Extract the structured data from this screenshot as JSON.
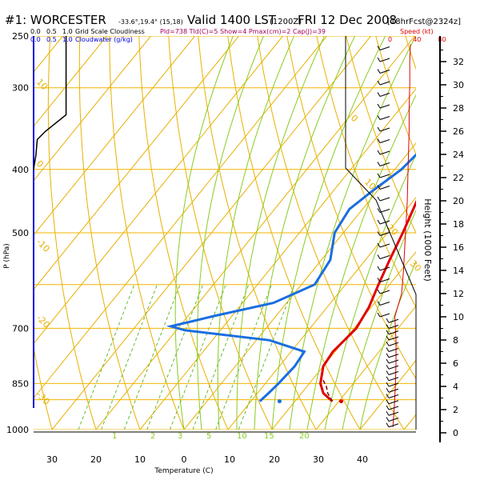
{
  "header": {
    "station": "#1: WORCESTER",
    "coords": "-33.6°,19.4° (15,18)",
    "valid": "Valid 1400 LST",
    "utc": "(1200Z)",
    "date": "FRI 12 Dec 2008",
    "forecast": "[18hrFcst@2324z]",
    "indices": "Pld=738 Tld(C)=5 Show=4 Pmax(cm)=2 Cap(J)=39"
  },
  "cloud_scale": {
    "black_label": "Grid Scale Cloudiness",
    "black_ticks": [
      "0.0",
      "0.5",
      "1.0"
    ],
    "blue_label": "Cloudwater (g/kg)",
    "blue_ticks": [
      "0.0",
      "0.5",
      "1.0"
    ]
  },
  "wind_scale": {
    "label": "Speed (kt)",
    "ticks": [
      "0",
      "40",
      "80"
    ]
  },
  "colors": {
    "isobar": "#f0b400",
    "dry_adiabat": "#e8b000",
    "moist_adiabat": "#88cc22",
    "mixing_ratio": "#66bb33",
    "temperature": "#e00000",
    "dewpoint": "#1a6ee0",
    "cloud_black": "#000000",
    "cloud_blue": "#0000dd",
    "wind_speed": "#e00000",
    "parcel": "#800000"
  },
  "chart_data": {
    "type": "skew-t",
    "xlabel": "Temperature (C)",
    "ylabel": "P (hPa)",
    "right_axis_label": "Height (1000 Feet)",
    "pressure_ticks": [
      250,
      300,
      400,
      500,
      700,
      850,
      1000
    ],
    "extra_isobars": [
      600,
      900
    ],
    "temperature_ticks": [
      30,
      20,
      10,
      0,
      0,
      10,
      20,
      30,
      40
    ],
    "temperature_tick_values": [
      -30,
      -20,
      -10,
      0,
      0,
      10,
      20,
      30,
      40
    ],
    "height_ticks_kft": [
      0,
      2,
      4,
      6,
      8,
      10,
      12,
      14,
      16,
      18,
      20,
      22,
      24,
      26,
      28,
      30,
      32
    ],
    "dry_adiabat_labels": [
      "10",
      "0",
      "-10",
      "-20",
      "-30",
      "0",
      "10",
      "20",
      "30"
    ],
    "moist_adiabat_labels": [
      "1",
      "2",
      "3",
      "5",
      "10",
      "15",
      "20"
    ],
    "temperature": [
      {
        "p": 260,
        "t": -2
      },
      {
        "p": 300,
        "t": 1.5
      },
      {
        "p": 350,
        "t": 5
      },
      {
        "p": 400,
        "t": 8
      },
      {
        "p": 450,
        "t": 11
      },
      {
        "p": 500,
        "t": 13.5
      },
      {
        "p": 550,
        "t": 15.5
      },
      {
        "p": 600,
        "t": 17.5
      },
      {
        "p": 650,
        "t": 19.5
      },
      {
        "p": 700,
        "t": 20.5
      },
      {
        "p": 730,
        "t": 20
      },
      {
        "p": 760,
        "t": 19.5
      },
      {
        "p": 800,
        "t": 20
      },
      {
        "p": 850,
        "t": 22.5
      },
      {
        "p": 880,
        "t": 25
      },
      {
        "p": 905,
        "t": 28.5
      }
    ],
    "dewpoint": [
      {
        "p": 260,
        "t": -6
      },
      {
        "p": 300,
        "t": -3
      },
      {
        "p": 340,
        "t": 1
      },
      {
        "p": 370,
        "t": 2.5
      },
      {
        "p": 400,
        "t": 1.5
      },
      {
        "p": 430,
        "t": -1
      },
      {
        "p": 460,
        "t": -3
      },
      {
        "p": 500,
        "t": -2
      },
      {
        "p": 550,
        "t": 2
      },
      {
        "p": 600,
        "t": 3
      },
      {
        "p": 640,
        "t": -3
      },
      {
        "p": 670,
        "t": -14
      },
      {
        "p": 695,
        "t": -22
      },
      {
        "p": 705,
        "t": -18
      },
      {
        "p": 730,
        "t": 3
      },
      {
        "p": 760,
        "t": 13
      },
      {
        "p": 800,
        "t": 13.5
      },
      {
        "p": 850,
        "t": 13
      },
      {
        "p": 880,
        "t": 12.5
      },
      {
        "p": 905,
        "t": 12
      }
    ],
    "surface_temperature": 30.5,
    "surface_dewpoint": 16.5,
    "surface_pressure": 905,
    "parcel": [
      {
        "p": 905,
        "t": 28.5
      },
      {
        "p": 880,
        "t": 26
      },
      {
        "p": 860,
        "t": 24.5
      },
      {
        "p": 840,
        "t": 22.5
      }
    ],
    "grid_scale_cloudiness": [
      {
        "p": 250,
        "v": 0.7
      },
      {
        "p": 330,
        "v": 0.7
      },
      {
        "p": 350,
        "v": 0.25
      },
      {
        "p": 360,
        "v": 0.08
      },
      {
        "p": 380,
        "v": 0.05
      },
      {
        "p": 400,
        "v": 0.0
      }
    ],
    "wind_speed_kt": [
      {
        "h": 0.5,
        "v": 4
      },
      {
        "h": 2,
        "v": 6
      },
      {
        "h": 4,
        "v": 8
      },
      {
        "h": 6,
        "v": 9
      },
      {
        "h": 8,
        "v": 9
      },
      {
        "h": 10,
        "v": 7
      },
      {
        "h": 12,
        "v": 18
      },
      {
        "h": 14,
        "v": 21
      },
      {
        "h": 16,
        "v": 23
      },
      {
        "h": 18,
        "v": 25
      },
      {
        "h": 20,
        "v": 27
      },
      {
        "h": 22,
        "v": 28
      },
      {
        "h": 24,
        "v": 29
      },
      {
        "h": 26,
        "v": 30
      },
      {
        "h": 28,
        "v": 30
      },
      {
        "h": 30,
        "v": 31
      },
      {
        "h": 32,
        "v": 31
      },
      {
        "h": 33.5,
        "v": 32
      }
    ],
    "wind_barbs_kft": [
      0.5,
      1,
      1.5,
      2,
      2.5,
      3,
      3.5,
      4,
      4.5,
      5,
      5.5,
      6,
      6.5,
      7,
      7.5,
      8,
      8.5,
      9,
      9.5,
      10,
      11,
      12,
      13,
      14,
      15,
      16,
      17,
      18,
      19,
      20,
      21,
      22,
      23,
      24,
      25,
      26,
      27,
      28,
      29,
      30,
      31,
      32,
      33
    ]
  }
}
